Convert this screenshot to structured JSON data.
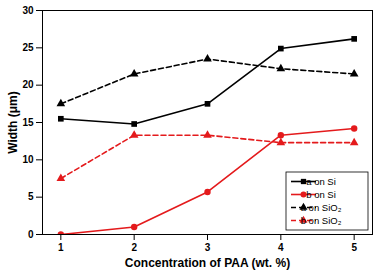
{
  "chart_data": {
    "type": "line",
    "x_label": "Concentration of PAA (wt. %)",
    "y_label": "Width (μm)",
    "x": [
      1,
      2,
      3,
      4,
      5
    ],
    "xlim": [
      0.75,
      5.25
    ],
    "xticks": [
      1,
      2,
      3,
      4,
      5
    ],
    "ylim": [
      0,
      30
    ],
    "yticks": [
      0,
      5,
      10,
      15,
      20,
      25,
      30
    ],
    "legend": "lower right",
    "series": [
      {
        "name": "a on Si",
        "color": "#000000",
        "marker": "square",
        "line_style": "solid",
        "values": [
          15.5,
          14.8,
          17.5,
          24.9,
          26.2
        ]
      },
      {
        "name": "b on Si",
        "color": "#e41a1c",
        "marker": "circle",
        "line_style": "solid",
        "values": [
          0,
          1.0,
          5.7,
          13.3,
          14.2
        ]
      },
      {
        "name": "a on SiO₂",
        "color": "#000000",
        "marker": "triangle",
        "line_style": "dashed",
        "values": [
          17.5,
          21.5,
          23.5,
          22.2,
          21.5
        ]
      },
      {
        "name": "b on SiO₂",
        "color": "#e41a1c",
        "marker": "triangle",
        "line_style": "dashed",
        "values": [
          7.5,
          13.3,
          13.3,
          12.3,
          12.3
        ]
      }
    ]
  }
}
